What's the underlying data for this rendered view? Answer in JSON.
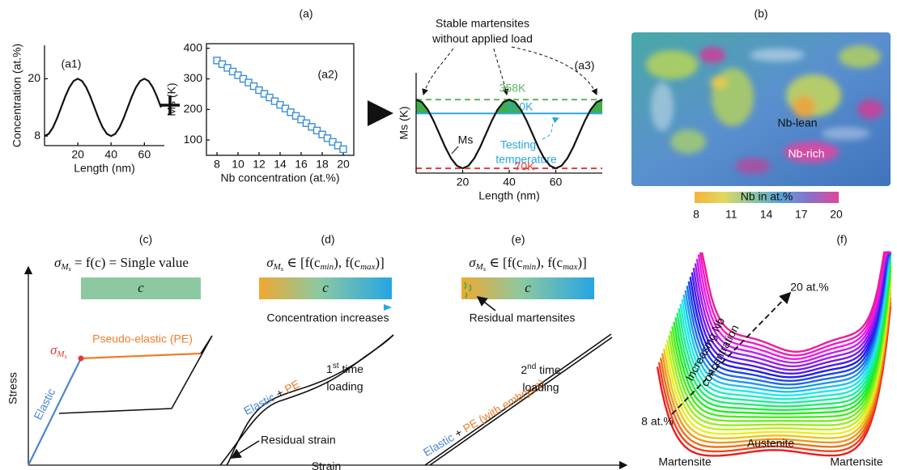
{
  "header": {
    "a": "(a)",
    "b": "(b)",
    "c": "(c)",
    "d": "(d)",
    "e": "(e)",
    "f": "(f)"
  },
  "chart_data": [
    {
      "type": "line",
      "label": "(a1)",
      "x_label": "Length (nm)",
      "y_label": "Concentration (at.%)",
      "x": [
        0,
        2.5,
        5,
        7.5,
        10,
        12.5,
        15,
        17.5,
        20,
        22.5,
        25,
        27.5,
        30,
        32.5,
        35,
        37.5,
        40,
        42.5,
        45,
        47.5,
        50,
        52.5,
        55,
        57.5,
        60,
        62.5,
        65,
        67.5,
        70
      ],
      "values": [
        8,
        8.46,
        9.76,
        11.7,
        14,
        16.3,
        18.24,
        19.54,
        20,
        19.54,
        18.24,
        16.3,
        14,
        11.7,
        9.76,
        8.46,
        8,
        8.46,
        9.76,
        11.7,
        14,
        16.3,
        18.24,
        19.54,
        20,
        19.54,
        18.24,
        16.3,
        14
      ],
      "color": "#111111",
      "xlim": [
        0,
        72
      ],
      "ylim": [
        6,
        27
      ],
      "xticks": [
        20,
        40,
        60
      ],
      "yticks": [
        8,
        20
      ]
    },
    {
      "type": "line",
      "label": "(a2)",
      "x_label": "Nb concentration (at.%)",
      "y_label": "Ms (K)",
      "x": [
        8,
        8.5,
        9,
        9.5,
        10,
        10.5,
        11,
        11.5,
        12,
        12.5,
        13,
        13.5,
        14,
        14.5,
        15,
        15.5,
        16,
        16.5,
        17,
        17.5,
        18,
        18.5,
        19,
        19.5,
        20
      ],
      "values": [
        360,
        348,
        336,
        324,
        312,
        300,
        288,
        276,
        263,
        251,
        239,
        227,
        215,
        203,
        191,
        179,
        167,
        155,
        143,
        131,
        118,
        106,
        94,
        82,
        70
      ],
      "color": "#3b8ed6",
      "marker": "square",
      "frame": true,
      "xlim": [
        7,
        21
      ],
      "ylim": [
        50,
        415
      ],
      "xticks": [
        8,
        10,
        12,
        14,
        16,
        18,
        20
      ],
      "yticks": [
        100,
        200,
        300,
        400
      ]
    },
    {
      "type": "line",
      "label": "(a3)",
      "x_label": "Length (nm)",
      "y_label": "Ms (K)",
      "x": [
        0,
        2.5,
        5,
        7.5,
        10,
        12.5,
        15,
        17.5,
        20,
        22.5,
        25,
        27.5,
        30,
        32.5,
        35,
        37.5,
        40,
        42.5,
        45,
        47.5,
        50,
        52.5,
        55,
        57.5,
        60,
        62.5,
        65,
        67.5,
        70,
        72.5,
        75,
        77.5,
        80
      ],
      "values": [
        358,
        347,
        315.8,
        269.1,
        214,
        158.9,
        112.2,
        81,
        70,
        81,
        112.2,
        158.9,
        214,
        269.1,
        315.8,
        347,
        358,
        347,
        315.8,
        269.1,
        214,
        158.9,
        112.2,
        81,
        70,
        81,
        112.2,
        158.9,
        214,
        269.1,
        315.8,
        347,
        358
      ],
      "color": "#111111",
      "xlim": [
        0,
        80
      ],
      "ylim": [
        50,
        470
      ],
      "xticks": [
        20,
        40,
        60
      ],
      "reference_lines": [
        {
          "value": 358,
          "label": "358K",
          "color": "#5cb85c",
          "dashed": true
        },
        {
          "value": 300,
          "label": "300K",
          "color": "#29a8e0",
          "dashed": false
        },
        {
          "value": 70,
          "label": "70K",
          "color": "#e53935",
          "dashed": true
        }
      ],
      "fill_color": "#3fae49",
      "annotations": {
        "title": [
          "Stable martensites",
          "without applied load"
        ],
        "curve_label": "Ms",
        "testing": [
          "Testing",
          "temperature"
        ]
      }
    }
  ],
  "panel_b": {
    "labels": {
      "lean": "Nb-lean",
      "rich": "Nb-rich"
    },
    "colorbar": {
      "title": "Nb in at.%",
      "ticks": [
        8,
        11,
        14,
        17,
        20
      ]
    }
  },
  "panel_c": {
    "formula": [
      "σ",
      "M",
      "s",
      " = f(c) = Single value"
    ],
    "bar": "c",
    "sigma": [
      "σ",
      "M",
      "s"
    ],
    "elastic": "Elastic",
    "pe": "Pseudo-elastic (PE)"
  },
  "panel_d": {
    "formula": [
      "σ",
      "M",
      "s",
      " ∈ [f(c",
      "min",
      "), f(c",
      "max",
      ")]"
    ],
    "bar": "c",
    "arrow_label": "Concentration increases",
    "curve_label": [
      "Elastic",
      " + ",
      "PE"
    ],
    "loading": [
      "1",
      "st",
      " time",
      "loading"
    ],
    "residual": "Residual strain"
  },
  "panel_e": {
    "formula": [
      "σ",
      "M",
      "s",
      " ∈ [f(c",
      "min",
      "), f(c",
      "max",
      ")]"
    ],
    "bar": "c",
    "arrow_label": "Residual martensites",
    "curve_label": [
      "Elastic",
      " + ",
      "PE (with embryos)"
    ],
    "loading": [
      "2",
      "nd",
      " time",
      "loading"
    ]
  },
  "axes": {
    "y": "Stress",
    "x": "Strain"
  },
  "panel_f": {
    "top": "20 at.%",
    "bottom": "8 at.%",
    "arrow_label": [
      "Increasing Nb",
      "concentration"
    ],
    "states": [
      "Martensite",
      "Austenite",
      "Martensite"
    ]
  }
}
